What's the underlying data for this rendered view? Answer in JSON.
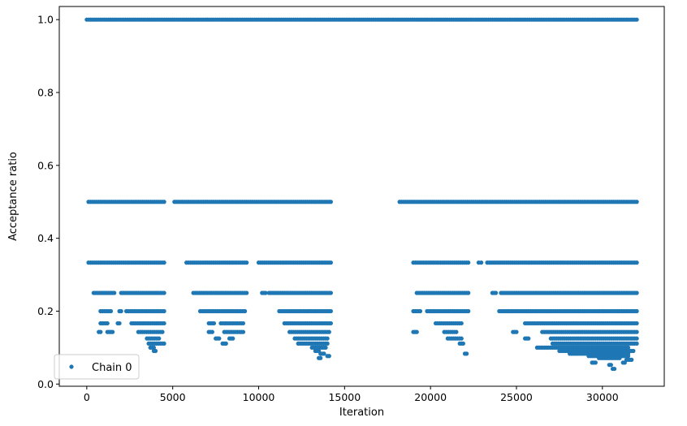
{
  "chart_data": {
    "type": "scatter",
    "xlabel": "Iteration",
    "ylabel": "Acceptance ratio",
    "xlim": [
      -1600,
      33600
    ],
    "ylim": [
      -0.006,
      1.036
    ],
    "x_ticks": [
      0,
      5000,
      10000,
      15000,
      20000,
      25000,
      30000
    ],
    "x_tick_labels": [
      "0",
      "5000",
      "10000",
      "15000",
      "20000",
      "25000",
      "30000"
    ],
    "y_ticks": [
      0.0,
      0.2,
      0.4,
      0.6,
      0.8,
      1.0
    ],
    "y_tick_labels": [
      "0.0",
      "0.2",
      "0.4",
      "0.6",
      "0.8",
      "1.0"
    ],
    "grid": false,
    "legend_position": "lower-left",
    "marker_color": "#1f77b4",
    "series": [
      {
        "name": "Chain 0",
        "bands": [
          {
            "y": 1.0,
            "ranges": [
              [
                0,
                32000
              ]
            ]
          },
          {
            "y": 0.5,
            "ranges": [
              [
                100,
                4500
              ],
              [
                5100,
                14200
              ],
              [
                18200,
                32000
              ]
            ]
          },
          {
            "y": 0.3333,
            "ranges": [
              [
                100,
                4500
              ],
              [
                5800,
                9300
              ],
              [
                10000,
                14200
              ],
              [
                19000,
                22200
              ],
              [
                22800,
                22950
              ],
              [
                23300,
                32000
              ]
            ]
          },
          {
            "y": 0.25,
            "ranges": [
              [
                400,
                1600
              ],
              [
                2000,
                4500
              ],
              [
                6200,
                9300
              ],
              [
                10200,
                10400
              ],
              [
                10600,
                14200
              ],
              [
                19200,
                22200
              ],
              [
                23600,
                23800
              ],
              [
                24100,
                32000
              ]
            ]
          },
          {
            "y": 0.2,
            "ranges": [
              [
                800,
                1400
              ],
              [
                1900,
                2000
              ],
              [
                2300,
                4500
              ],
              [
                6600,
                9200
              ],
              [
                11200,
                14200
              ],
              [
                19000,
                19400
              ],
              [
                19800,
                22200
              ],
              [
                24000,
                32000
              ]
            ]
          },
          {
            "y": 0.1667,
            "ranges": [
              [
                800,
                1200
              ],
              [
                1800,
                1900
              ],
              [
                2600,
                4500
              ],
              [
                7100,
                7400
              ],
              [
                7800,
                9100
              ],
              [
                11500,
                14200
              ],
              [
                20300,
                21800
              ],
              [
                25500,
                32000
              ]
            ]
          },
          {
            "y": 0.1429,
            "ranges": [
              [
                700,
                800
              ],
              [
                1200,
                1500
              ],
              [
                3000,
                4400
              ],
              [
                7100,
                7300
              ],
              [
                8000,
                9100
              ],
              [
                11800,
                14100
              ],
              [
                19000,
                19200
              ],
              [
                20800,
                21500
              ],
              [
                24800,
                25000
              ],
              [
                26500,
                32000
              ]
            ]
          },
          {
            "y": 0.125,
            "ranges": [
              [
                3500,
                4200
              ],
              [
                7500,
                7700
              ],
              [
                8300,
                8500
              ],
              [
                12100,
                14000
              ],
              [
                21000,
                21800
              ],
              [
                25500,
                25700
              ],
              [
                27000,
                32000
              ]
            ]
          },
          {
            "y": 0.1111,
            "ranges": [
              [
                3600,
                4500
              ],
              [
                7900,
                8100
              ],
              [
                12300,
                14000
              ],
              [
                21700,
                21900
              ],
              [
                27100,
                32000
              ]
            ]
          },
          {
            "y": 0.1,
            "ranges": [
              [
                3700,
                3900
              ],
              [
                13100,
                13900
              ],
              [
                26200,
                31500
              ]
            ]
          },
          {
            "y": 0.0909,
            "ranges": [
              [
                3900,
                4000
              ],
              [
                13300,
                13500
              ],
              [
                27500,
                31800
              ]
            ]
          },
          {
            "y": 0.0833,
            "ranges": [
              [
                13600,
                13800
              ],
              [
                22000,
                22100
              ],
              [
                28100,
                31500
              ]
            ]
          },
          {
            "y": 0.0769,
            "ranges": [
              [
                14000,
                14100
              ],
              [
                29200,
                31500
              ]
            ]
          },
          {
            "y": 0.0714,
            "ranges": [
              [
                13500,
                13600
              ],
              [
                29800,
                31000
              ]
            ]
          },
          {
            "y": 0.0667,
            "ranges": [
              [
                31400,
                31700
              ]
            ]
          },
          {
            "y": 0.0588,
            "ranges": [
              [
                29400,
                29600
              ],
              [
                31200,
                31300
              ]
            ]
          },
          {
            "y": 0.0526,
            "ranges": [
              [
                30400,
                30500
              ]
            ]
          },
          {
            "y": 0.0417,
            "ranges": [
              [
                30600,
                30700
              ]
            ]
          }
        ]
      }
    ]
  }
}
